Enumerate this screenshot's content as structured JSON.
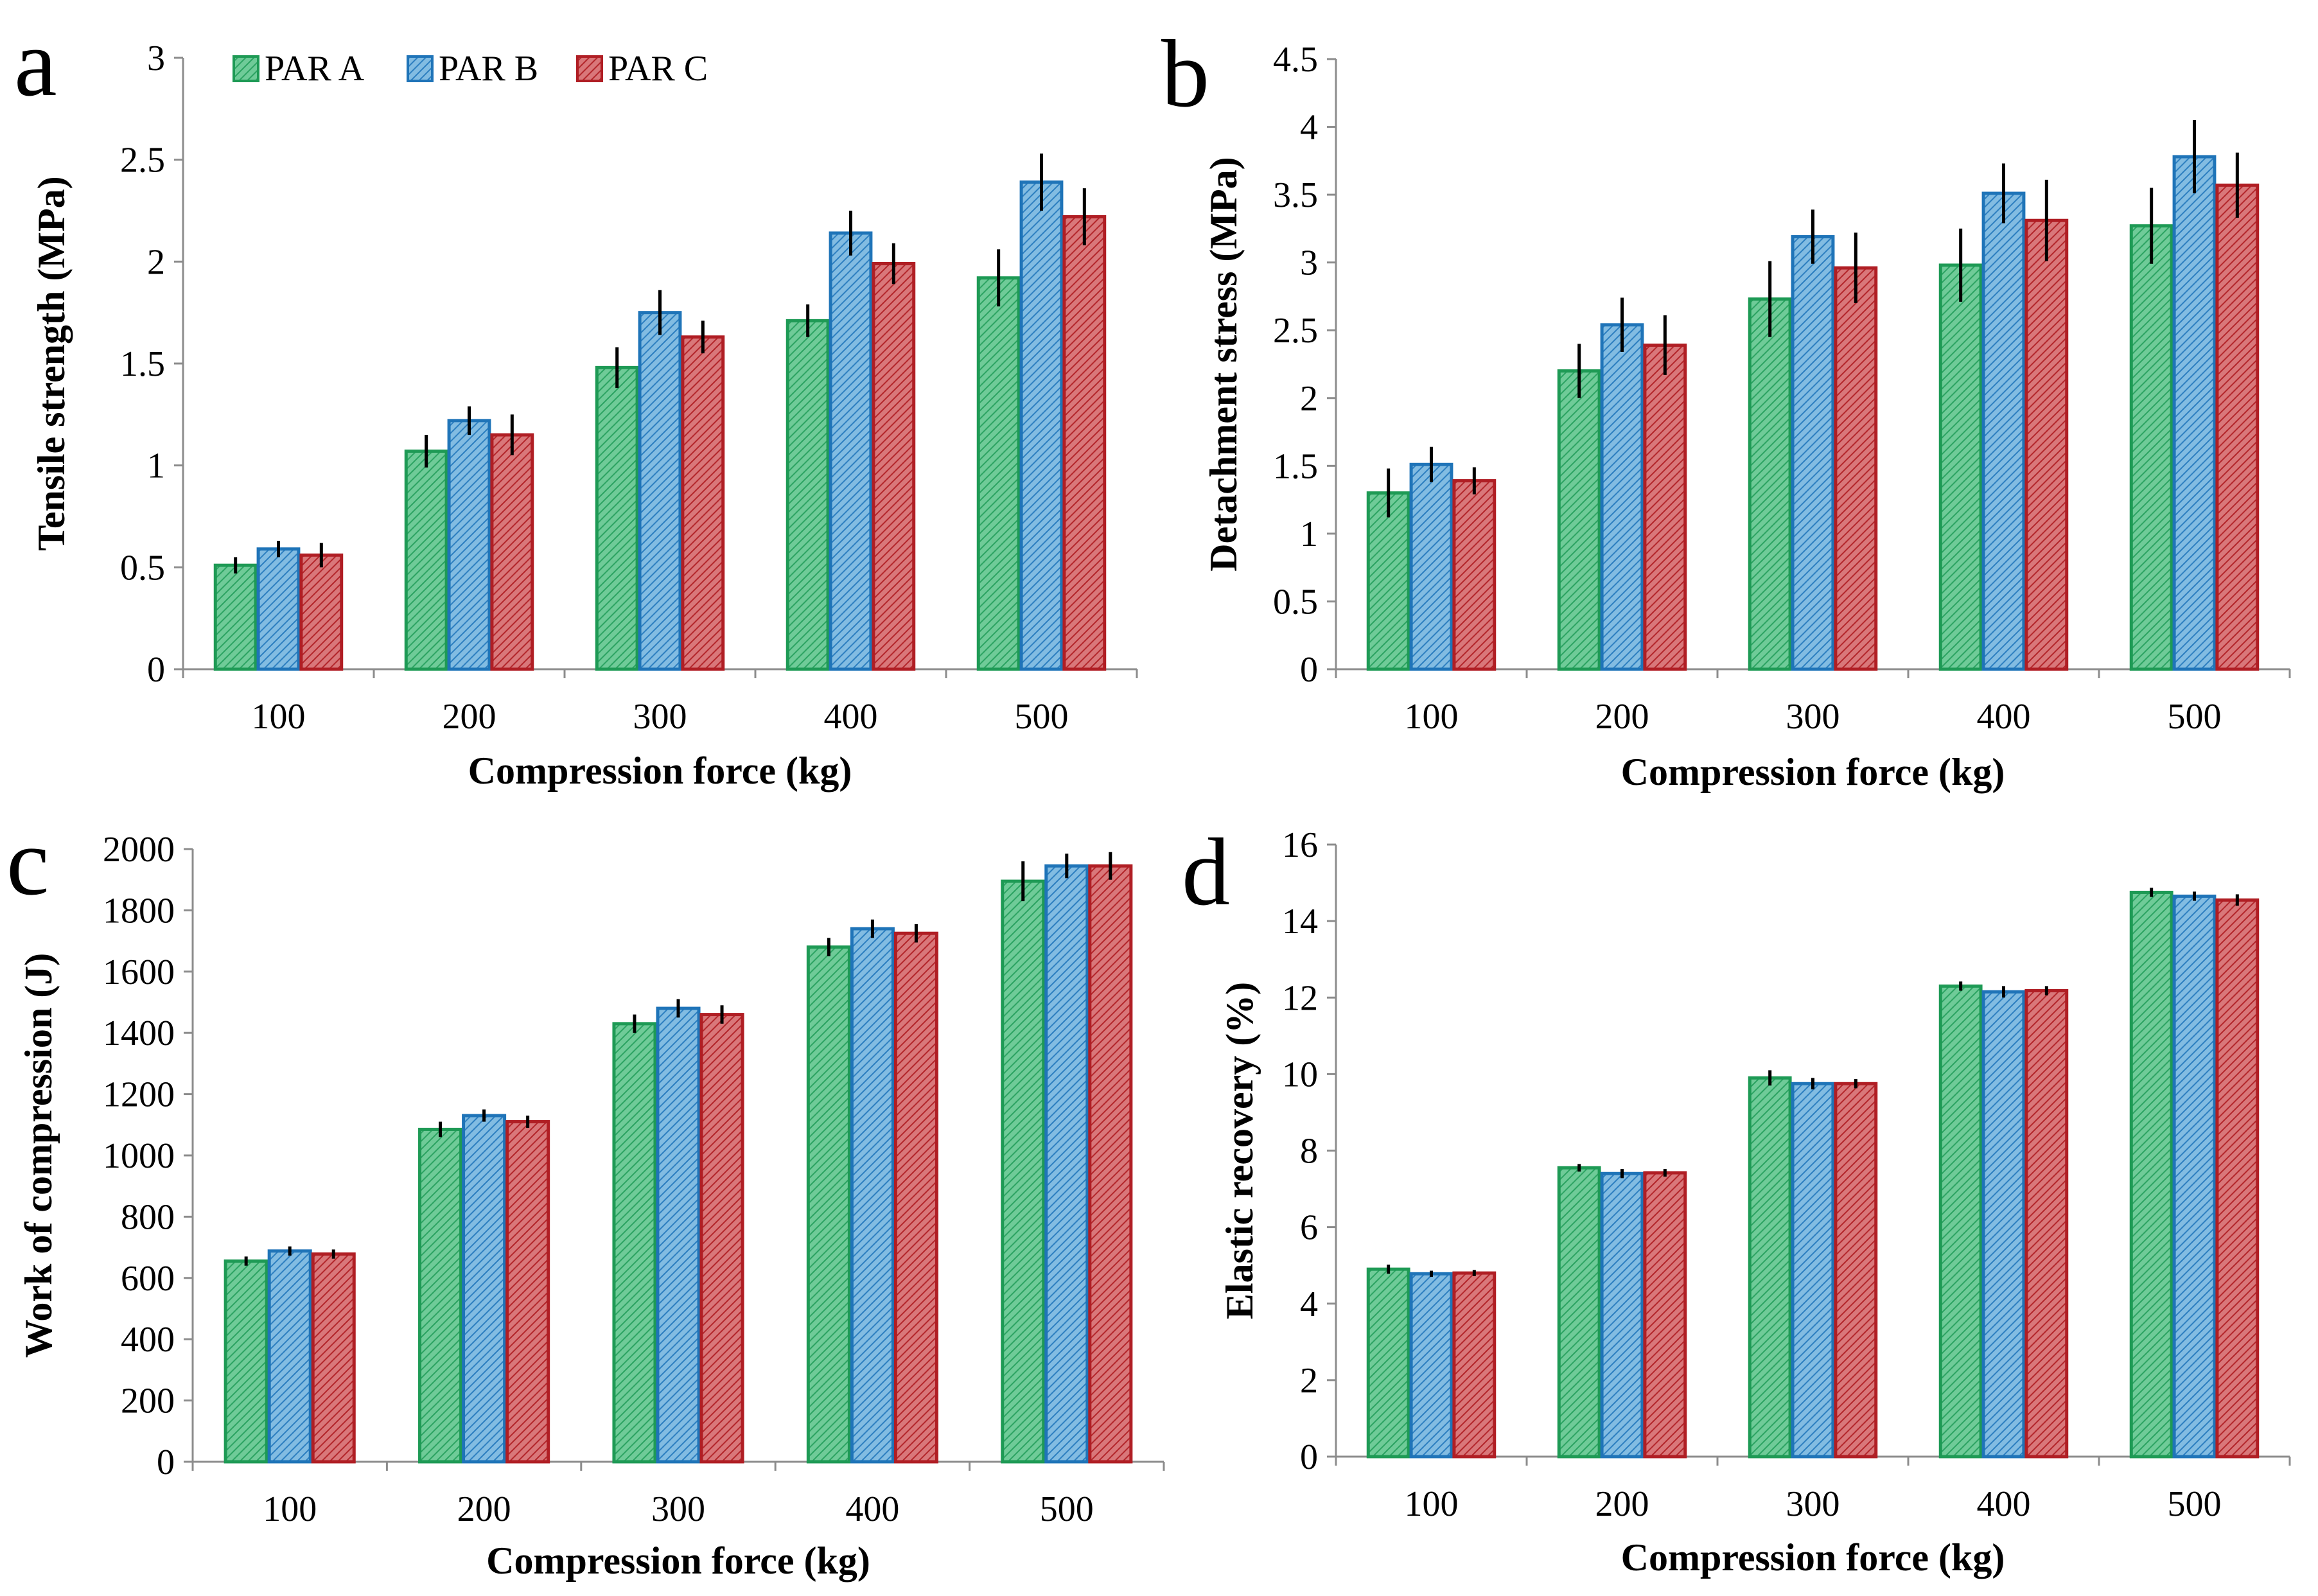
{
  "figure": {
    "legend": [
      "PAR A",
      "PAR B",
      "PAR C"
    ]
  },
  "colors": {
    "PAR A": {
      "fill": "#5cc08a",
      "stroke": "#1e9a55"
    },
    "PAR B": {
      "fill": "#6aaed8",
      "stroke": "#1f74b8"
    },
    "PAR C": {
      "fill": "#cc5a5e",
      "stroke": "#b01e24"
    },
    "error_bar": "#000000",
    "axis": "#8c8c8c"
  },
  "chart_data": [
    {
      "panel": "a",
      "type": "bar",
      "title": "",
      "xlabel": "Compression force (kg)",
      "ylabel": "Tensile strength (MPa)",
      "categories": [
        "100",
        "200",
        "300",
        "400",
        "500"
      ],
      "ylim": [
        0,
        3
      ],
      "yticks": [
        0,
        0.5,
        1,
        1.5,
        2,
        2.5,
        3
      ],
      "ytick_labels": [
        "0",
        "0.5",
        "1",
        "1.5",
        "2",
        "2.5",
        "3"
      ],
      "legend_position": "top",
      "series": [
        {
          "name": "PAR A",
          "values": [
            0.51,
            1.07,
            1.48,
            1.71,
            1.92
          ],
          "errors": [
            0.04,
            0.08,
            0.1,
            0.08,
            0.14
          ]
        },
        {
          "name": "PAR B",
          "values": [
            0.59,
            1.22,
            1.75,
            2.14,
            2.39
          ],
          "errors": [
            0.04,
            0.07,
            0.11,
            0.11,
            0.14
          ]
        },
        {
          "name": "PAR C",
          "values": [
            0.56,
            1.15,
            1.63,
            1.99,
            2.22
          ],
          "errors": [
            0.06,
            0.1,
            0.08,
            0.1,
            0.14
          ]
        }
      ]
    },
    {
      "panel": "b",
      "type": "bar",
      "title": "",
      "xlabel": "Compression force (kg)",
      "ylabel": "Detachment stress (MPa)",
      "categories": [
        "100",
        "200",
        "300",
        "400",
        "500"
      ],
      "ylim": [
        0,
        4.5
      ],
      "yticks": [
        0,
        0.5,
        1,
        1.5,
        2,
        2.5,
        3,
        3.5,
        4,
        4.5
      ],
      "ytick_labels": [
        "0",
        "0.5",
        "1",
        "1.5",
        "2",
        "2.5",
        "3",
        "3.5",
        "4",
        "4.5"
      ],
      "series": [
        {
          "name": "PAR A",
          "values": [
            1.3,
            2.2,
            2.73,
            2.98,
            3.27
          ],
          "errors": [
            0.18,
            0.2,
            0.28,
            0.27,
            0.28
          ]
        },
        {
          "name": "PAR B",
          "values": [
            1.51,
            2.54,
            3.19,
            3.51,
            3.78
          ],
          "errors": [
            0.13,
            0.2,
            0.2,
            0.22,
            0.27
          ]
        },
        {
          "name": "PAR C",
          "values": [
            1.39,
            2.39,
            2.96,
            3.31,
            3.57
          ],
          "errors": [
            0.1,
            0.22,
            0.26,
            0.3,
            0.24
          ]
        }
      ]
    },
    {
      "panel": "c",
      "type": "bar",
      "title": "",
      "xlabel": "Compression force (kg)",
      "ylabel": "Work of compression (J)",
      "categories": [
        "100",
        "200",
        "300",
        "400",
        "500"
      ],
      "ylim": [
        0,
        2000
      ],
      "yticks": [
        0,
        200,
        400,
        600,
        800,
        1000,
        1200,
        1400,
        1600,
        1800,
        2000
      ],
      "ytick_labels": [
        "0",
        "200",
        "400",
        "600",
        "800",
        "1000",
        "1200",
        "1400",
        "1600",
        "1800",
        "2000"
      ],
      "series": [
        {
          "name": "PAR A",
          "values": [
            655,
            1085,
            1430,
            1680,
            1895
          ],
          "errors": [
            15,
            25,
            30,
            30,
            65
          ]
        },
        {
          "name": "PAR B",
          "values": [
            688,
            1130,
            1480,
            1740,
            1945
          ],
          "errors": [
            15,
            20,
            30,
            30,
            40
          ]
        },
        {
          "name": "PAR C",
          "values": [
            678,
            1110,
            1460,
            1725,
            1945
          ],
          "errors": [
            15,
            20,
            30,
            30,
            45
          ]
        }
      ]
    },
    {
      "panel": "d",
      "type": "bar",
      "title": "",
      "xlabel": "Compression force (kg)",
      "ylabel": "Elastic recovery (%)",
      "categories": [
        "100",
        "200",
        "300",
        "400",
        "500"
      ],
      "ylim": [
        0,
        16
      ],
      "yticks": [
        0,
        2,
        4,
        6,
        8,
        10,
        12,
        14,
        16
      ],
      "ytick_labels": [
        "0",
        "2",
        "4",
        "6",
        "8",
        "10",
        "12",
        "14",
        "16"
      ],
      "series": [
        {
          "name": "PAR A",
          "values": [
            4.9,
            7.55,
            9.9,
            12.3,
            14.75
          ],
          "errors": [
            0.12,
            0.1,
            0.2,
            0.12,
            0.12
          ]
        },
        {
          "name": "PAR B",
          "values": [
            4.78,
            7.4,
            9.75,
            12.15,
            14.65
          ],
          "errors": [
            0.08,
            0.12,
            0.15,
            0.15,
            0.12
          ]
        },
        {
          "name": "PAR C",
          "values": [
            4.8,
            7.42,
            9.75,
            12.18,
            14.55
          ],
          "errors": [
            0.08,
            0.1,
            0.12,
            0.12,
            0.15
          ]
        }
      ]
    }
  ]
}
